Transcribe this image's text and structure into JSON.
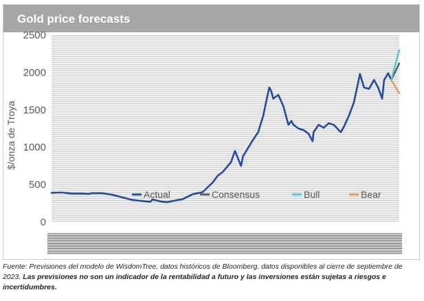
{
  "title": "Gold price forecasts",
  "chart_data": {
    "type": "line",
    "title": "Gold price forecasts",
    "ylabel": "$/onza de Troya",
    "xlabel": "",
    "ylim": [
      0,
      2500
    ],
    "yticks": [
      0,
      500,
      1000,
      1500,
      2000,
      2500
    ],
    "ytick_labels": [
      "0",
      "500",
      "1000",
      "1500",
      "2000",
      "2500"
    ],
    "x_range": [
      1990,
      2024.5
    ],
    "series": [
      {
        "name": "Actual",
        "color": "#1f4aa8",
        "x": [
          1990,
          1991,
          1992,
          1993,
          1993.7,
          1994,
          1995,
          1996,
          1997,
          1998,
          1999,
          1999.8,
          2000,
          2001,
          2001.5,
          2002,
          2003,
          2004,
          2005,
          2006,
          2006.5,
          2007,
          2007.8,
          2008.2,
          2008.8,
          2009,
          2010,
          2010.5,
          2011,
          2011.6,
          2011.8,
          2012,
          2012.5,
          2013,
          2013.5,
          2013.8,
          2014,
          2014.5,
          2015,
          2015.5,
          2015.9,
          2016,
          2016.5,
          2017,
          2017.5,
          2018,
          2018.7,
          2019,
          2019.5,
          2020,
          2020.6,
          2021,
          2021.5,
          2022,
          2022.4,
          2022.8,
          2023,
          2023.4,
          2023.7
        ],
        "values": [
          390,
          395,
          380,
          380,
          375,
          385,
          385,
          365,
          330,
          295,
          280,
          270,
          300,
          270,
          265,
          280,
          305,
          370,
          400,
          530,
          620,
          670,
          800,
          950,
          750,
          880,
          1100,
          1200,
          1420,
          1800,
          1750,
          1650,
          1700,
          1550,
          1300,
          1350,
          1300,
          1250,
          1230,
          1180,
          1080,
          1200,
          1300,
          1260,
          1320,
          1300,
          1200,
          1270,
          1420,
          1600,
          1980,
          1800,
          1780,
          1900,
          1800,
          1650,
          1900,
          1990,
          1900
        ],
        "solid": true
      },
      {
        "name": "Consensus",
        "color": "#595959",
        "x": [
          2023.7,
          2024.5
        ],
        "values": [
          1900,
          2120
        ],
        "solid": false
      },
      {
        "name": "Bull",
        "color": "#4dc6d2",
        "x": [
          2023.7,
          2024.5
        ],
        "values": [
          1900,
          2300
        ],
        "solid": false
      },
      {
        "name": "Bear",
        "color": "#e59a45",
        "x": [
          2023.7,
          2024.5
        ],
        "values": [
          1900,
          1720
        ],
        "solid": false
      }
    ],
    "legend": [
      "Actual",
      "Consensus",
      "Bull",
      "Bear"
    ],
    "legend_position": "inside-bottom"
  },
  "footer": {
    "source": "Fuente: Previsiones del modelo de WisdomTree, datos históricos de Bloomberg, datos disponibles al cierre de septiembre de 2023.",
    "disclaimer": "Las previsiones no son un indicador de la rentabilidad a futuro y las inversiones están sujetas a riesgos e incertidumbres."
  }
}
